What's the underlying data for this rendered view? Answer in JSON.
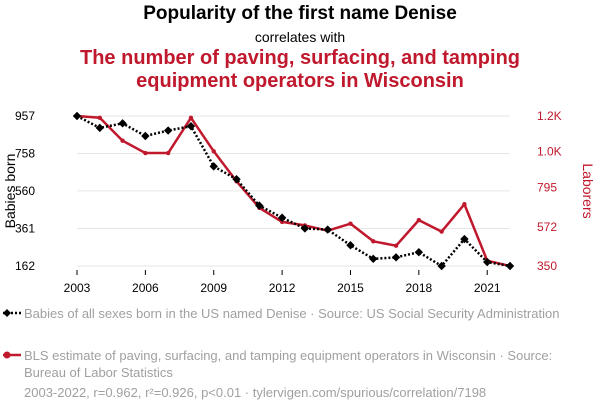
{
  "title": "Popularity of the first name Denise",
  "subtitle": "correlates with",
  "title2": "The number of paving, surfacing, and tamping equipment operators in Wisconsin",
  "colors": {
    "series1": "#000000",
    "series2": "#c0182c",
    "grid": "#e6e6e6",
    "legend_text": "#a0a0a0"
  },
  "chart_data": {
    "type": "line",
    "x": [
      2003,
      2004,
      2005,
      2006,
      2007,
      2008,
      2009,
      2010,
      2011,
      2012,
      2013,
      2014,
      2015,
      2016,
      2017,
      2018,
      2019,
      2020,
      2021,
      2022
    ],
    "x_ticks": [
      "2003",
      "2006",
      "2009",
      "2012",
      "2015",
      "2018",
      "2021"
    ],
    "x_tick_values": [
      2003,
      2006,
      2009,
      2012,
      2015,
      2018,
      2021
    ],
    "y_left": {
      "label": "Babies born",
      "ticks": [
        "957",
        "758",
        "560",
        "361",
        "162"
      ],
      "tick_values": [
        957,
        758,
        560,
        361,
        162
      ],
      "range": [
        162,
        957
      ]
    },
    "y_right": {
      "label": "Laborers",
      "ticks": [
        "1.2K",
        "1.0K",
        "795",
        "572",
        "350"
      ],
      "tick_values": [
        1200,
        1000,
        795,
        572,
        350
      ],
      "range": [
        350,
        1200
      ]
    },
    "grid": true,
    "legend_position": "bottom",
    "series": [
      {
        "name": "Babies of all sexes born in the US named Denise · Source: US Social Security Administration",
        "axis": "left",
        "style": "dotted",
        "marker": "diamond",
        "values": [
          957,
          894,
          918,
          851,
          880,
          903,
          690,
          622,
          482,
          418,
          361,
          355,
          272,
          200,
          208,
          235,
          162,
          305,
          183,
          162
        ]
      },
      {
        "name": "BLS estimate of paving, surfacing, and tamping equipment operators in Wisconsin · Source: Bureau of Labor Statistics",
        "axis": "right",
        "style": "solid",
        "marker": "circle",
        "values": [
          1200,
          1190,
          1060,
          990,
          990,
          1190,
          1000,
          830,
          680,
          600,
          580,
          550,
          590,
          490,
          465,
          610,
          545,
          700,
          380,
          350
        ]
      }
    ]
  },
  "legend": {
    "item1": "Babies of all sexes born in the US named Denise · Source: US Social Security Administration",
    "item2": "BLS estimate of paving, surfacing, and tamping equipment operators in Wisconsin · Source: Bureau of Labor Statistics"
  },
  "footer": "2003-2022, r=0.962, r²=0.926, p<0.01 · tylervigen.com/spurious/correlation/7198"
}
